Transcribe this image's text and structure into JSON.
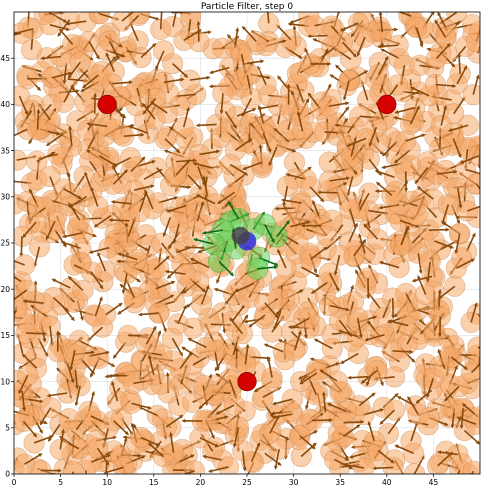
{
  "chart_data": {
    "type": "scatter",
    "title": "Particle Filter, step 0",
    "xlabel": "",
    "ylabel": "",
    "xlim": [
      0,
      50
    ],
    "ylim": [
      0,
      50
    ],
    "xticks": [
      0,
      5,
      10,
      15,
      20,
      25,
      30,
      35,
      40,
      45
    ],
    "yticks": [
      0,
      5,
      10,
      15,
      20,
      25,
      30,
      35,
      40,
      45
    ],
    "xtick_labels": [
      "0",
      "5",
      "10",
      "15",
      "20",
      "25",
      "30",
      "35",
      "40",
      "45"
    ],
    "ytick_labels": [
      "0",
      "5",
      "10",
      "15",
      "20",
      "25",
      "30",
      "35",
      "40",
      "45"
    ],
    "grid": true,
    "landmarks": [
      {
        "x": 10,
        "y": 40
      },
      {
        "x": 40,
        "y": 40
      },
      {
        "x": 25,
        "y": 10
      }
    ],
    "true_pose": {
      "x": 25.0,
      "y": 25.2
    },
    "estimate": {
      "x": 24.3,
      "y": 25.8
    },
    "likely_particles": [
      {
        "x": 23.2,
        "y": 27.3,
        "theta": 0.4
      },
      {
        "x": 24.1,
        "y": 27.6,
        "theta": 2.1
      },
      {
        "x": 25.7,
        "y": 26.5,
        "theta": 1.0
      },
      {
        "x": 22.4,
        "y": 26.4,
        "theta": 3.3
      },
      {
        "x": 22.9,
        "y": 25.2,
        "theta": 4.4
      },
      {
        "x": 21.4,
        "y": 24.9,
        "theta": 2.9
      },
      {
        "x": 22.0,
        "y": 23.0,
        "theta": 5.5
      },
      {
        "x": 26.3,
        "y": 23.4,
        "theta": 5.9
      },
      {
        "x": 26.1,
        "y": 22.2,
        "theta": 0.1
      },
      {
        "x": 28.2,
        "y": 25.7,
        "theta": 0.9
      },
      {
        "x": 23.8,
        "y": 24.4,
        "theta": 1.7
      },
      {
        "x": 26.9,
        "y": 27.0,
        "theta": 5.2
      }
    ],
    "particle_cloud": {
      "count": 1000,
      "x_range": [
        0,
        50
      ],
      "y_range": [
        0,
        50
      ],
      "seed": 7
    },
    "colors": {
      "particle_fill": "#f5a96a",
      "particle_edge": "#c98a55",
      "particle_arrow": "#8a4a0c",
      "likely_fill": "#63d35a",
      "likely_arrow": "#0d6d16",
      "landmark": "#d50000",
      "true_pose": "#2f2fe0",
      "estimate": "#444444",
      "grid": "#dddddd"
    }
  }
}
